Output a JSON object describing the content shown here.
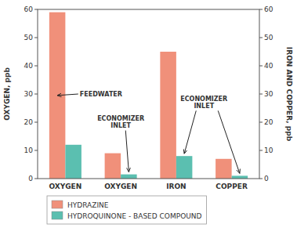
{
  "chart_data": {
    "type": "bar",
    "categories": [
      "OXYGEN",
      "OXYGEN",
      "IRON",
      "COPPER"
    ],
    "series": [
      {
        "name": "HYDRAZINE",
        "color": "#F0907A",
        "values": [
          59,
          9,
          45,
          7
        ]
      },
      {
        "name": "HYDROQUINONE - BASED COMPOUND",
        "color": "#5BBFB0",
        "values": [
          12,
          1.5,
          8,
          1
        ]
      }
    ],
    "ylabel": "OXYGEN, ppb",
    "y2label": "IRON AND COPPER, ppb",
    "ylim": [
      0,
      60
    ],
    "yticks": [
      0,
      10,
      20,
      30,
      40,
      50,
      60
    ],
    "y2lim": [
      0,
      60
    ],
    "y2ticks": [
      0,
      10,
      20,
      30,
      40,
      50,
      60
    ],
    "annotations": [
      {
        "text": "FEEDWATER"
      },
      {
        "text": "ECONOMIZER\nINLET"
      },
      {
        "text": "ECONOMIZER\nINLET"
      }
    ],
    "grid": false,
    "legend": "bottom"
  }
}
